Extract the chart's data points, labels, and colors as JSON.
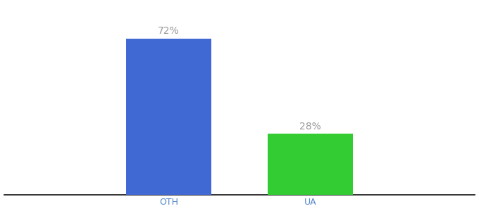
{
  "categories": [
    "OTH",
    "UA"
  ],
  "values": [
    72,
    28
  ],
  "bar_colors": [
    "#4169d4",
    "#33cc33"
  ],
  "label_texts": [
    "72%",
    "28%"
  ],
  "ylim": [
    0,
    88
  ],
  "background_color": "#ffffff",
  "bar_width": 0.18,
  "label_fontsize": 10,
  "tick_fontsize": 9,
  "label_color": "#999999",
  "tick_color": "#5588cc",
  "x_positions": [
    0.35,
    0.65
  ],
  "xlim": [
    0.0,
    1.0
  ]
}
